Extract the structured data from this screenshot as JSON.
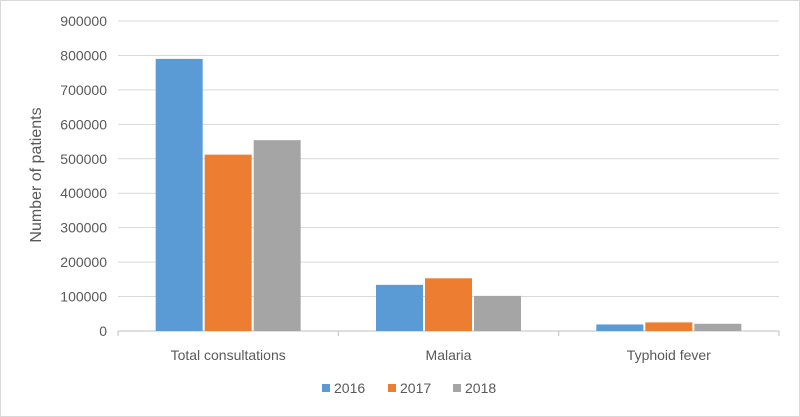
{
  "chart_data": {
    "type": "bar",
    "title": "",
    "xlabel": "",
    "ylabel": "Number of patients",
    "ylim": [
      0,
      900000
    ],
    "yticks": [
      0,
      100000,
      200000,
      300000,
      400000,
      500000,
      600000,
      700000,
      800000,
      900000
    ],
    "grid": true,
    "legend_position": "bottom",
    "categories": [
      "Total consultations",
      "Malaria",
      "Typhoid fever"
    ],
    "series": [
      {
        "name": "2016",
        "color": "#5b9bd5",
        "values": [
          790000,
          134000,
          19000
        ]
      },
      {
        "name": "2017",
        "color": "#ed7d31",
        "values": [
          512000,
          153000,
          25000
        ]
      },
      {
        "name": "2018",
        "color": "#a5a5a5",
        "values": [
          554000,
          102000,
          21000
        ]
      }
    ]
  }
}
